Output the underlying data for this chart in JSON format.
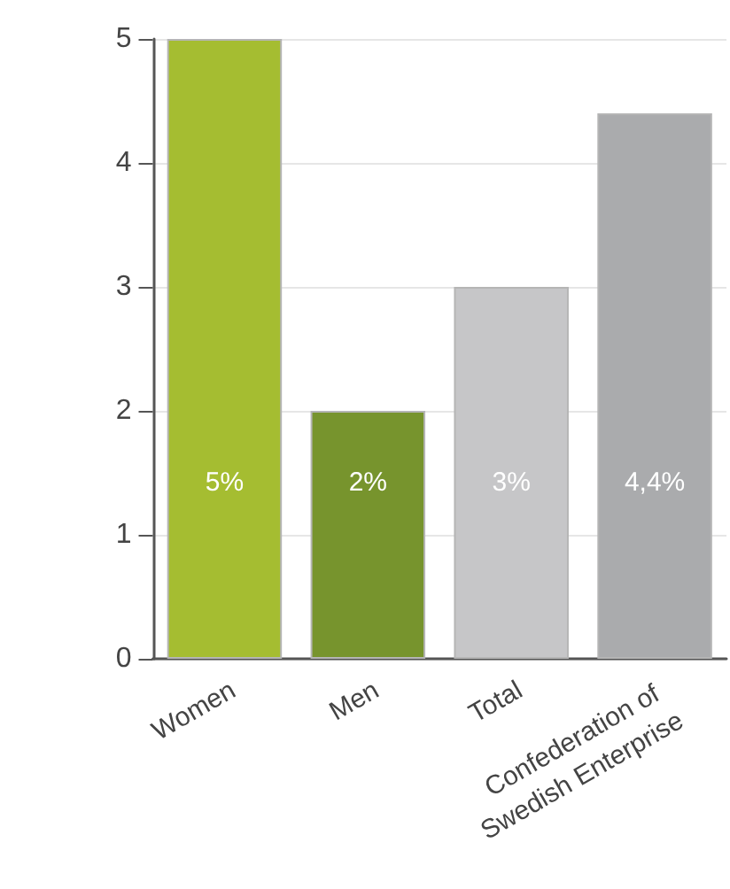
{
  "chart_data": {
    "type": "bar",
    "categories": [
      "Women",
      "Men",
      "Total",
      "Confederation of Swedish Enterprise"
    ],
    "values": [
      5,
      2,
      3,
      4.4
    ],
    "colors": [
      "#a5bd31",
      "#77942d",
      "#c6c6c8",
      "#aaabad"
    ],
    "value_labels": [
      "5%",
      "2%",
      "3%",
      "4,4%"
    ],
    "ylim": [
      0,
      5
    ],
    "yticks": [
      0,
      1,
      2,
      3,
      4,
      5
    ],
    "grid": "y"
  }
}
